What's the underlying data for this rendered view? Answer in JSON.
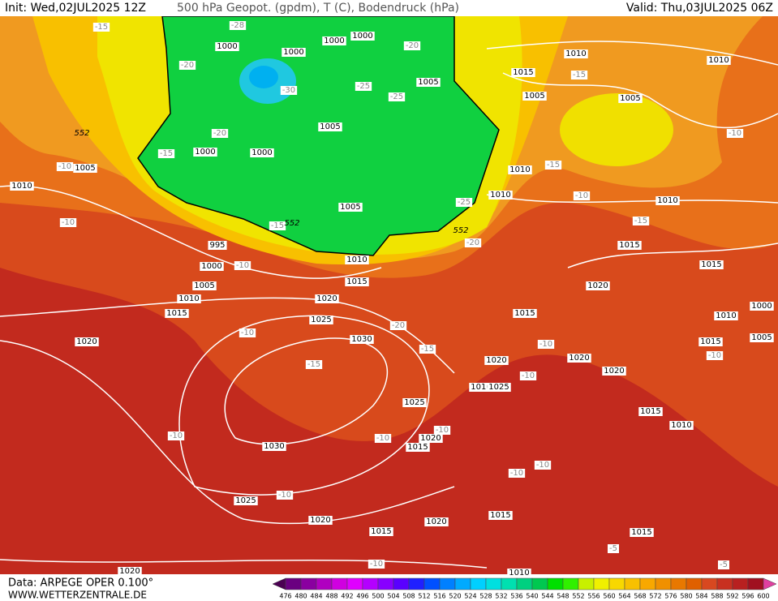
{
  "header": {
    "init": "Init: Wed,02JUL2025 12Z",
    "title": "500 hPa Geopot. (gpdm), T (C), Bodendruck (hPa)",
    "valid": "Valid: Thu,03JUL2025 06Z"
  },
  "footer": {
    "source": "Data: ARPEGE OPER 0.100°",
    "site": "WWW.WETTERZENTRALE.DE"
  },
  "colorbar": {
    "labels": [
      476,
      480,
      484,
      488,
      492,
      496,
      500,
      504,
      508,
      512,
      516,
      520,
      524,
      528,
      532,
      536,
      540,
      544,
      548,
      552,
      556,
      560,
      564,
      568,
      572,
      576,
      580,
      584,
      588,
      592,
      596,
      600
    ],
    "colors": [
      "#4b0052",
      "#6a0080",
      "#8a00a0",
      "#b000c0",
      "#d000e0",
      "#e000ff",
      "#b400ff",
      "#8800ff",
      "#5a00ff",
      "#2020ff",
      "#0050ff",
      "#0080ff",
      "#00aaff",
      "#00d0ff",
      "#00e0e0",
      "#00e0b0",
      "#00d080",
      "#00c850",
      "#00e000",
      "#30f000",
      "#c8f000",
      "#f0f000",
      "#f8d800",
      "#f8c000",
      "#f8a800",
      "#f09000",
      "#e87800",
      "#e06000",
      "#d84820",
      "#c83020",
      "#b82020",
      "#a01020",
      "#e040a0"
    ]
  },
  "map": {
    "pressure_labels": [
      1000,
      1000,
      1000,
      1000,
      1005,
      1005,
      1000,
      1000,
      1005,
      1010,
      1005,
      995,
      1000,
      1010,
      1015,
      1005,
      1010,
      1020,
      1015,
      1025,
      1030,
      1020,
      1025,
      1030,
      1025,
      1020,
      1020,
      1015,
      1020,
      1015,
      1015,
      1020,
      1020,
      1010,
      1025,
      1020,
      1020,
      1015,
      1020,
      1015,
      1015,
      1010,
      1000,
      1015,
      1005,
      1015,
      1010,
      1015,
      1010,
      1010,
      1010,
      1005,
      1005,
      1015,
      1010,
      1010,
      1010
    ],
    "temperature_labels": [
      -15,
      -28,
      -20,
      -20,
      -30,
      -25,
      -25,
      -20,
      -15,
      -10,
      -10,
      -15,
      -10,
      -25,
      -20,
      -15,
      -10,
      -15,
      -15,
      -10,
      -10,
      -20,
      -15,
      -15,
      -10,
      -10,
      -10,
      -10,
      -10,
      -10,
      -10,
      -10,
      -10,
      -10,
      -5,
      -5
    ],
    "geopotential_labels": [
      552,
      552,
      552
    ]
  }
}
